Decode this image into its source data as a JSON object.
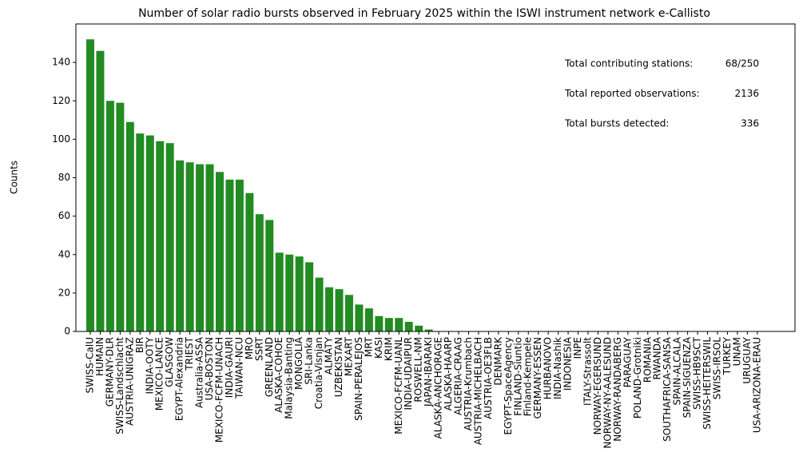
{
  "chart_data": {
    "type": "bar",
    "title": "Number of solar radio bursts observed in February 2025 within the ISWI instrument network e-Callisto",
    "y_label": "Counts",
    "color": "#228b22",
    "ylim": [
      0,
      160
    ],
    "yticks": [
      0,
      20,
      40,
      60,
      80,
      100,
      120,
      140
    ],
    "grid": false,
    "categories": [
      "SWISS-CalU",
      "HUMAIN",
      "GERMANY-DLR",
      "SWISS-Landschlacht",
      "AUSTRIA-UNIGRAZ",
      "BIR",
      "INDIA-OOTY",
      "MEXICO-LANCE",
      "GLASGOW",
      "EGYPT-Alexandria",
      "TRIEST",
      "Australia-ASSA",
      "USA-BOSTON",
      "MEXICO-FCFM-UNACH",
      "INDIA-GAURI",
      "TAIWAN-NCU",
      "MRO",
      "SSRT",
      "GREENLAND",
      "ALASKA-COHOE",
      "Malaysia-Banting",
      "MONGOLIA",
      "SRI-Lanka",
      "Croatia-Visnjan",
      "ALMATY",
      "UZBEKISTAN",
      "MEXART",
      "SPAIN-PERALEJOS",
      "MRT",
      "KASI",
      "KRIM",
      "MEXICO-FCFM-UANL",
      "INDIA-UDAIPUR",
      "ROSWELL-NM",
      "JAPAN-IBARAKI",
      "ALASKA-ANCHORAGE",
      "ALASKA-HAARP",
      "ALGERIA-CRAAG",
      "AUSTRIA-Krumbach",
      "AUSTRIA-MICHELBACH",
      "AUSTRIA-OE3FLB",
      "DENMARK",
      "EGYPT-SpaceAgency",
      "FINLAND-Siuntio",
      "Finland-Kempele",
      "GERMANY-ESSEN",
      "HURBANOVO",
      "INDIA-Nashik",
      "INDONESIA",
      "INPE",
      "ITALY-Strassolt",
      "NORWAY-EGERSUND",
      "NORWAY-NY-AALESUND",
      "NORWAY-RANDABERG",
      "PARAGUAY",
      "POLAND-Grotniki",
      "ROMANIA",
      "RWANDA",
      "SOUTHAFRICA-SANSA",
      "SPAIN-ALCALA",
      "SPAIN-SIGUENZA",
      "SWISS-HB9SCT",
      "SWISS-HEITERSWIL",
      "SWISS-IRSOL",
      "TURKEY",
      "UNAM",
      "URUGUAY",
      "USA-ARIZONA-ERAU"
    ],
    "values": [
      152,
      146,
      120,
      119,
      109,
      103,
      102,
      99,
      98,
      89,
      88,
      87,
      87,
      83,
      79,
      79,
      72,
      61,
      58,
      41,
      40,
      39,
      36,
      28,
      23,
      22,
      19,
      14,
      12,
      8,
      7,
      7,
      5,
      3,
      1,
      0,
      0,
      0,
      0,
      0,
      0,
      0,
      0,
      0,
      0,
      0,
      0,
      0,
      0,
      0,
      0,
      0,
      0,
      0,
      0,
      0,
      0,
      0,
      0,
      0,
      0,
      0,
      0,
      0,
      0,
      0,
      0,
      0
    ],
    "annotations": [
      {
        "label": "Total contributing stations:",
        "value": "68/250"
      },
      {
        "label": "Total reported observations:",
        "value": 2136
      },
      {
        "label": "Total bursts detected:",
        "value": 336
      }
    ]
  }
}
